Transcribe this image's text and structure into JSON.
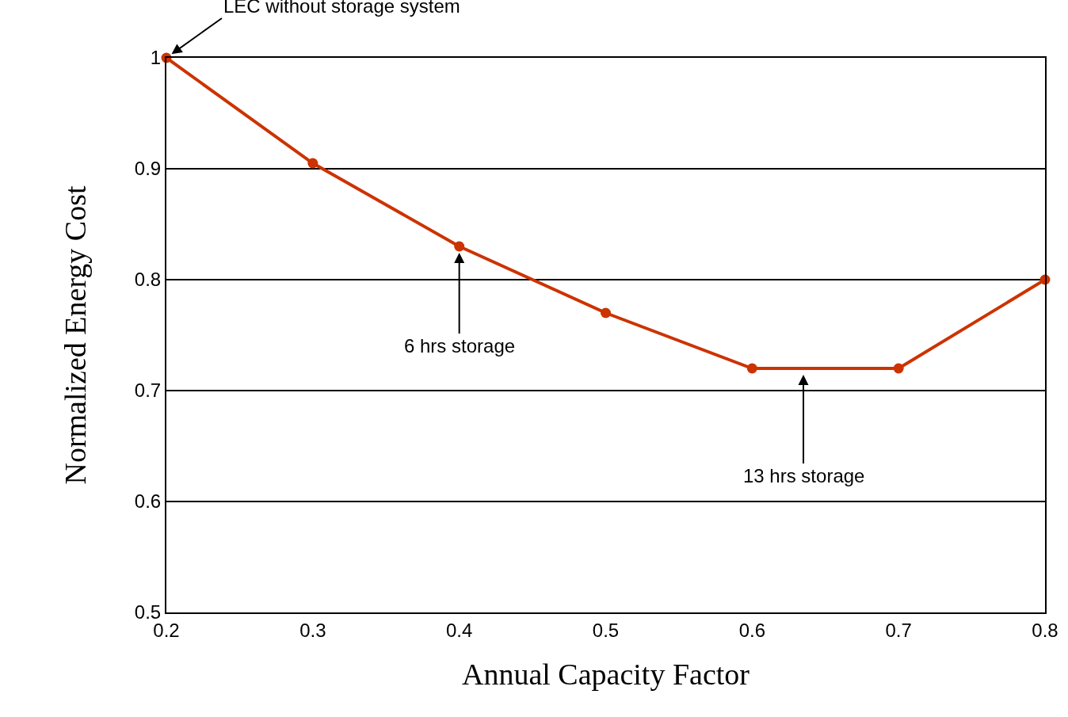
{
  "chart_data": {
    "type": "line",
    "xlabel": "Annual Capacity Factor",
    "ylabel": "Normalized Energy Cost",
    "x": [
      0.2,
      0.3,
      0.4,
      0.5,
      0.6,
      0.7,
      0.8
    ],
    "series": [
      {
        "color": "#cc3300",
        "values": [
          1.0,
          0.905,
          0.83,
          0.77,
          0.72,
          0.72,
          0.8
        ]
      }
    ],
    "xlim": [
      0.2,
      0.8
    ],
    "xticks": [
      0.2,
      0.3,
      0.4,
      0.5,
      0.6,
      0.7,
      0.8
    ],
    "ylim": [
      0.5,
      1
    ],
    "yticks": [
      0.5,
      0.6,
      0.7,
      0.8,
      0.9,
      1
    ],
    "grid": "y",
    "marker": "circle",
    "line_style": "solid",
    "legend": false,
    "annotations": [
      {
        "text": "LEC without storage system",
        "x": 0.2,
        "y": 1.0
      },
      {
        "text": "6 hrs storage",
        "x": 0.4,
        "y": 0.83
      },
      {
        "text": "13 hrs storage",
        "x": 0.635,
        "y": 0.72
      }
    ]
  }
}
